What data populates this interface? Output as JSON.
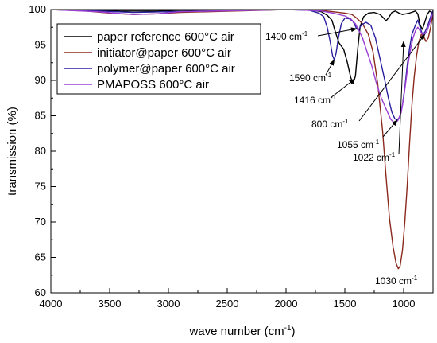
{
  "chart_data": {
    "type": "line",
    "xlabel": "wave number (cm",
    "xlabel_sup": "-1",
    "xlabel_end": ")",
    "ylabel": "transmission (%)",
    "xlim": [
      4000,
      750
    ],
    "ylim": [
      60,
      100
    ],
    "xticks": [
      4000,
      3500,
      3000,
      2500,
      2000,
      1500,
      1000
    ],
    "yticks": [
      60,
      65,
      70,
      75,
      80,
      85,
      90,
      95,
      100
    ],
    "legend_position": "top-left",
    "series": [
      {
        "name": "paper reference 600°C air",
        "color": "#000000",
        "points": [
          [
            4000,
            100
          ],
          [
            3700,
            99.9
          ],
          [
            3400,
            99.8
          ],
          [
            3100,
            99.8
          ],
          [
            2900,
            99.9
          ],
          [
            2000,
            100
          ],
          [
            1800,
            100
          ],
          [
            1700,
            99.7
          ],
          [
            1650,
            99.2
          ],
          [
            1610,
            98.5
          ],
          [
            1580,
            96.8
          ],
          [
            1550,
            95.3
          ],
          [
            1510,
            94.4
          ],
          [
            1480,
            92.6
          ],
          [
            1450,
            90.4
          ],
          [
            1430,
            89.6
          ],
          [
            1410,
            90.6
          ],
          [
            1390,
            94.5
          ],
          [
            1370,
            97.6
          ],
          [
            1340,
            99
          ],
          [
            1300,
            99.5
          ],
          [
            1250,
            99.6
          ],
          [
            1200,
            99.3
          ],
          [
            1170,
            98.8
          ],
          [
            1150,
            98.4
          ],
          [
            1130,
            98.8
          ],
          [
            1100,
            99.6
          ],
          [
            1070,
            99.8
          ],
          [
            1040,
            99.5
          ],
          [
            1010,
            99.3
          ],
          [
            980,
            99.4
          ],
          [
            950,
            99.5
          ],
          [
            900,
            99.8
          ],
          [
            880,
            99.4
          ],
          [
            860,
            97.8
          ],
          [
            840,
            97.2
          ],
          [
            820,
            98.2
          ],
          [
            800,
            99.3
          ],
          [
            780,
            99.8
          ],
          [
            760,
            99.6
          ],
          [
            750,
            99.8
          ]
        ]
      },
      {
        "name": "initiator@paper 600°C air",
        "color": "#8b2a1e",
        "points": [
          [
            4000,
            100
          ],
          [
            3700,
            99.8
          ],
          [
            3500,
            99.5
          ],
          [
            3300,
            99.3
          ],
          [
            3100,
            99.4
          ],
          [
            2900,
            99.6
          ],
          [
            2000,
            100
          ],
          [
            1800,
            100
          ],
          [
            1700,
            99.9
          ],
          [
            1600,
            99.7
          ],
          [
            1500,
            99.5
          ],
          [
            1440,
            99.3
          ],
          [
            1400,
            98.8
          ],
          [
            1350,
            98
          ],
          [
            1300,
            96.5
          ],
          [
            1260,
            94
          ],
          [
            1220,
            89.5
          ],
          [
            1180,
            83
          ],
          [
            1150,
            76.5
          ],
          [
            1120,
            70.5
          ],
          [
            1090,
            66.5
          ],
          [
            1065,
            64.2
          ],
          [
            1045,
            63.4
          ],
          [
            1030,
            63.8
          ],
          [
            1010,
            66
          ],
          [
            990,
            70
          ],
          [
            970,
            75
          ],
          [
            950,
            81
          ],
          [
            930,
            86.5
          ],
          [
            910,
            90.5
          ],
          [
            890,
            93.5
          ],
          [
            870,
            95.5
          ],
          [
            850,
            96.5
          ],
          [
            830,
            96.2
          ],
          [
            810,
            95.5
          ],
          [
            790,
            96
          ],
          [
            770,
            97.5
          ],
          [
            755,
            99
          ],
          [
            750,
            99.5
          ]
        ]
      },
      {
        "name": "polymer@paper 600°C air",
        "color": "#2b1f9e",
        "points": [
          [
            4000,
            100
          ],
          [
            3600,
            99.8
          ],
          [
            3300,
            99.6
          ],
          [
            3000,
            99.7
          ],
          [
            2000,
            100
          ],
          [
            1800,
            99.9
          ],
          [
            1720,
            99.5
          ],
          [
            1680,
            99
          ],
          [
            1650,
            97.5
          ],
          [
            1625,
            95.5
          ],
          [
            1605,
            93.5
          ],
          [
            1590,
            92.9
          ],
          [
            1575,
            93.8
          ],
          [
            1555,
            96
          ],
          [
            1530,
            98
          ],
          [
            1500,
            98.8
          ],
          [
            1460,
            98.7
          ],
          [
            1430,
            98.3
          ],
          [
            1400,
            97.3
          ],
          [
            1385,
            97.1
          ],
          [
            1360,
            97.8
          ],
          [
            1320,
            98.2
          ],
          [
            1280,
            97.8
          ],
          [
            1240,
            96
          ],
          [
            1200,
            93
          ],
          [
            1160,
            90
          ],
          [
            1130,
            87.5
          ],
          [
            1100,
            85.5
          ],
          [
            1075,
            84.6
          ],
          [
            1055,
            84.4
          ],
          [
            1035,
            84.8
          ],
          [
            1010,
            86.5
          ],
          [
            990,
            89
          ],
          [
            970,
            92
          ],
          [
            950,
            94.5
          ],
          [
            930,
            96.5
          ],
          [
            900,
            97.8
          ],
          [
            880,
            98.5
          ],
          [
            860,
            97.5
          ],
          [
            840,
            96.5
          ],
          [
            820,
            96.8
          ],
          [
            800,
            97.5
          ],
          [
            780,
            98.5
          ],
          [
            760,
            99.5
          ],
          [
            750,
            99.8
          ]
        ]
      },
      {
        "name": "PMAPOSS 600°C air",
        "color": "#9b3fd4",
        "points": [
          [
            4000,
            100
          ],
          [
            3600,
            99.7
          ],
          [
            3300,
            99.3
          ],
          [
            3100,
            99.4
          ],
          [
            2900,
            99.7
          ],
          [
            2000,
            100
          ],
          [
            1800,
            99.9
          ],
          [
            1700,
            99.8
          ],
          [
            1600,
            99.5
          ],
          [
            1500,
            99.1
          ],
          [
            1450,
            98.7
          ],
          [
            1410,
            98
          ],
          [
            1380,
            97
          ],
          [
            1350,
            96
          ],
          [
            1310,
            94
          ],
          [
            1270,
            92
          ],
          [
            1230,
            89.5
          ],
          [
            1190,
            87.5
          ],
          [
            1150,
            86
          ],
          [
            1110,
            84.5
          ],
          [
            1080,
            84
          ],
          [
            1050,
            84.3
          ],
          [
            1020,
            85.5
          ],
          [
            1000,
            87.5
          ],
          [
            980,
            90
          ],
          [
            960,
            92.5
          ],
          [
            940,
            94.5
          ],
          [
            920,
            96
          ],
          [
            900,
            97
          ],
          [
            880,
            97.5
          ],
          [
            860,
            97
          ],
          [
            840,
            96.5
          ],
          [
            820,
            96.5
          ],
          [
            800,
            97
          ],
          [
            780,
            98
          ],
          [
            760,
            99
          ],
          [
            750,
            99.5
          ]
        ]
      }
    ],
    "annotations": [
      {
        "label": "1400 cm",
        "sup": "-1",
        "x": 1400,
        "y": 97.3
      },
      {
        "label": "1590 cm",
        "sup": "-1",
        "x": 1590,
        "y": 92.9
      },
      {
        "label": "1416 cm",
        "sup": "-1",
        "x": 1416,
        "y": 90.2
      },
      {
        "label": "800 cm",
        "sup": "-1",
        "x": 820,
        "y": 96.5
      },
      {
        "label": "1055 cm",
        "sup": "-1",
        "x": 1055,
        "y": 84.4
      },
      {
        "label": "1022 cm",
        "sup": "-1",
        "x": 1000,
        "y": 95.5
      },
      {
        "label": "1030 cm",
        "sup": "-1",
        "x": 1030,
        "y": 63.5
      }
    ]
  }
}
